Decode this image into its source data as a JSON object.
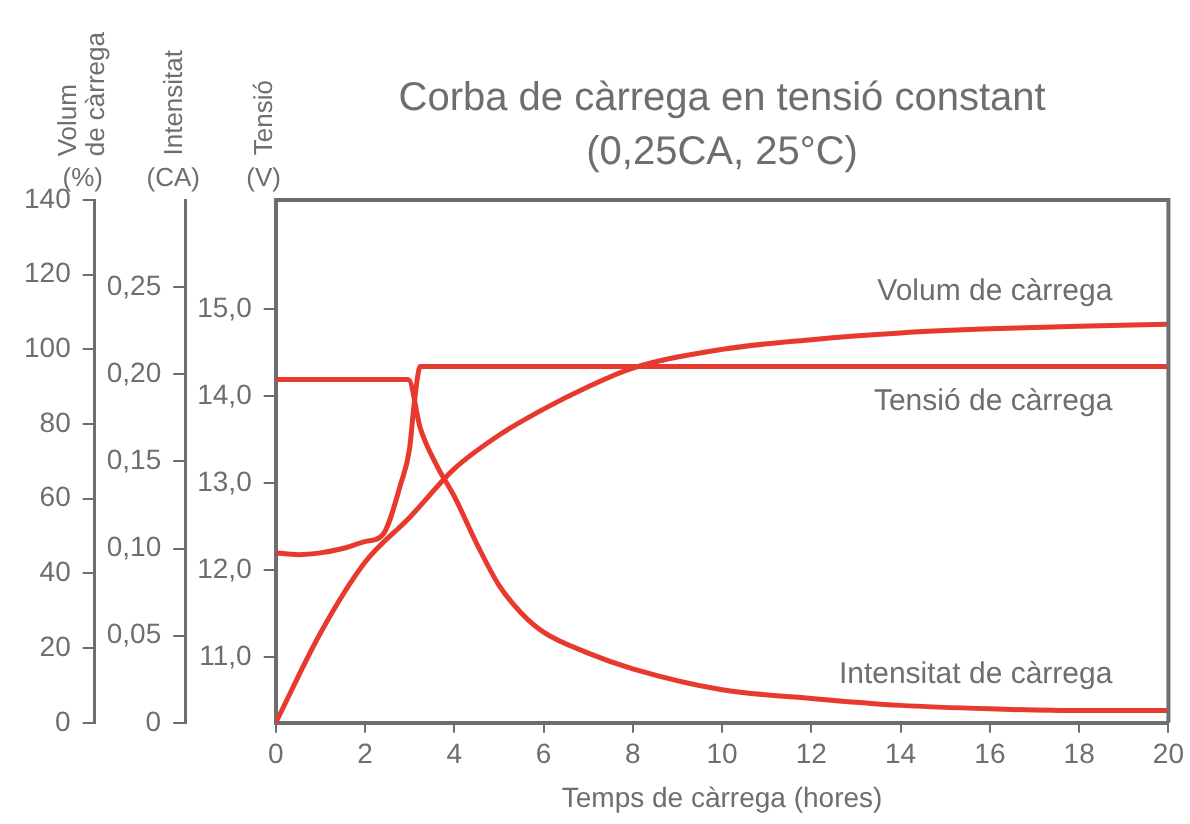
{
  "chart_data": {
    "type": "line",
    "title": "Corba de càrrega en tensió constant",
    "subtitle": "(0,25CA, 25°C)",
    "xlabel": "Temps de càrrega (hores)",
    "ylabel": "Volum de càrrega (%)",
    "y2label": "Intensitat (CA)",
    "y3label": "Tensió (V)",
    "xlim": [
      0,
      20
    ],
    "xticks": [
      0,
      2,
      4,
      6,
      8,
      10,
      12,
      14,
      16,
      18,
      20
    ],
    "ylim": [
      0,
      140
    ],
    "yticks": [
      0,
      20,
      40,
      60,
      80,
      100,
      120,
      140
    ],
    "y2lim": [
      0,
      0.3
    ],
    "y2ticks": [
      0,
      {
        "value": 0.05,
        "label": "0,05"
      },
      {
        "value": 0.1,
        "label": "0,10"
      },
      {
        "value": 0.15,
        "label": "0,15"
      },
      {
        "value": 0.2,
        "label": "0,20"
      },
      {
        "value": 0.25,
        "label": "0,25"
      }
    ],
    "y3lim": [
      10.25,
      16.25
    ],
    "y3ticks": [
      {
        "value": 11,
        "label": "11,0"
      },
      {
        "value": 12,
        "label": "12,0"
      },
      {
        "value": 13,
        "label": "13,0"
      },
      {
        "value": 14,
        "label": "14,0"
      },
      {
        "value": 15,
        "label": "15,0"
      }
    ],
    "legend": false,
    "marker": "none",
    "line_style": "solid",
    "series": [
      {
        "name": "Volum de càrrega",
        "color": "#e8392f",
        "x": [
          0,
          1,
          2,
          3,
          4,
          5,
          6,
          7,
          8,
          10,
          12,
          14,
          16,
          18,
          20
        ],
        "values": [
          0,
          24,
          43,
          55,
          68,
          77,
          84,
          90,
          95,
          100,
          102.6,
          104.4,
          105.5,
          106.2,
          106.7
        ]
      },
      {
        "name": "Tensió de càrrega",
        "color": "#e8392f",
        "axis": "y3",
        "x": [
          0,
          0.5,
          1,
          1.5,
          2,
          2.4,
          2.8,
          3.0,
          3.1,
          3.24,
          20
        ],
        "values": [
          12.2,
          12.18,
          12.2,
          12.25,
          12.33,
          12.41,
          12.99,
          13.4,
          13.9,
          14.34,
          14.34
        ]
      },
      {
        "name": "Intensitat de càrrega",
        "color": "#e8392f",
        "axis": "y2",
        "x": [
          0,
          2.97,
          3.24,
          3.6,
          4,
          4.5,
          5,
          5.5,
          6,
          7,
          8,
          10,
          12,
          14,
          16,
          18,
          20
        ],
        "values": [
          0.197,
          0.197,
          0.169,
          0.148,
          0.13,
          0.103,
          0.079,
          0.063,
          0.052,
          0.04,
          0.031,
          0.019,
          0.014,
          0.01,
          0.008,
          0.007,
          0.007
        ]
      }
    ]
  }
}
